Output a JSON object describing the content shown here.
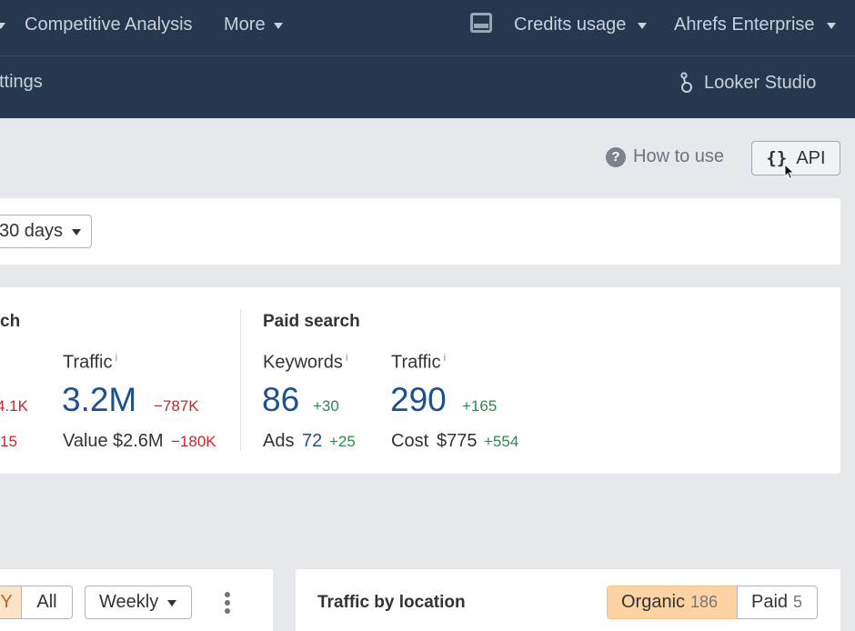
{
  "topnav": {
    "competitive_analysis": "Competitive Analysis",
    "more": "More",
    "credits_usage": "Credits usage",
    "account": "Ahrefs Enterprise",
    "prev_caret": "▾"
  },
  "subnav": {
    "settings": "ttings",
    "looker_studio": "Looker Studio"
  },
  "toolbar": {
    "how_to_use": "How to use",
    "api": "API",
    "api_braces": "{}"
  },
  "filter": {
    "period": "30 days"
  },
  "organic": {
    "title": "ch",
    "traffic_label": "Traffic",
    "traffic_value": "3.2M",
    "traffic_delta": "−787K",
    "value_label": "Value",
    "value_value": "$2.6M",
    "value_delta": "−180K",
    "cut_delta_top": "4.1K",
    "cut_delta_bottom": "15"
  },
  "paid": {
    "title": "Paid search",
    "keywords_label": "Keywords",
    "keywords_value": "86",
    "keywords_delta": "+30",
    "ads_label": "Ads",
    "ads_value": "72",
    "ads_delta": "+25",
    "traffic_label": "Traffic",
    "traffic_value": "290",
    "traffic_delta": "+165",
    "cost_label": "Cost",
    "cost_value": "$775",
    "cost_delta": "+554"
  },
  "chart_controls": {
    "range_cut": "Y",
    "range_all": "All",
    "interval": "Weekly"
  },
  "location": {
    "title": "Traffic by location",
    "organic_label": "Organic",
    "organic_count": "186",
    "paid_label": "Paid",
    "paid_count": "5"
  },
  "colors": {
    "nav_bg": "#26384f",
    "primary_value": "#1e4f8f",
    "negative": "#c4282d",
    "positive": "#2b8a4a",
    "active_toggle": "#fdd3a4"
  }
}
